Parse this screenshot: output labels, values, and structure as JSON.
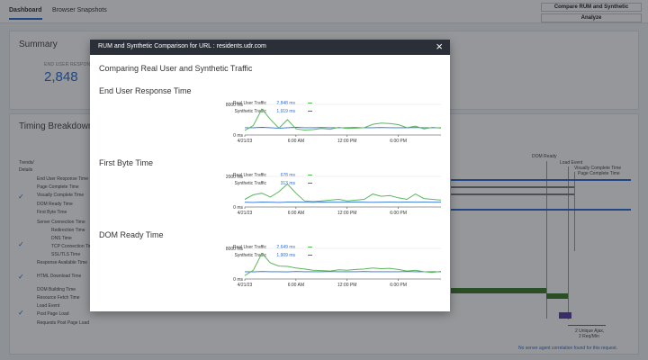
{
  "background": {
    "tabs": [
      {
        "label": "Dashboard",
        "active": true
      },
      {
        "label": "Browser Snapshots",
        "active": false
      }
    ],
    "compare_button": "Compare RUM and Synthetic",
    "analyze_button": "Analyze",
    "summary": {
      "title": "Summary",
      "metric_label": "END USER RESPONSE",
      "metric_value": "2,848"
    },
    "timing": {
      "title": "Timing Breakdown",
      "trends_label": "Trends/",
      "details_label": "Details",
      "rows": [
        "End User Response Time",
        "Page Complete Time",
        "Visually Complete Time",
        "DOM Ready Time",
        "First Byte Time",
        "Server Connection Time",
        "Redirection Time",
        "DNS Time",
        "TCP Connection Time",
        "SSL/TLS Time",
        "Response Available Time",
        "HTML Download Time",
        "DOM Building Time",
        "Resource Fetch Time",
        "Load Event",
        "Post Page Load",
        "Requests Post Page Load"
      ],
      "markers": [
        "DOM Ready",
        "Load Event",
        "Visually Complete Time",
        "Page Complete Time"
      ],
      "ajax_note_1": "2 Unique Ajax,",
      "ajax_note_2": "2 Req/Min",
      "footer_note": "No server agent correlation found for this request."
    }
  },
  "modal": {
    "title": "RUM and Synthetic Comparison for URL : residents.udr.com",
    "close_icon": "close-icon",
    "subtitle": "Comparing Real User and Synthetic Traffic",
    "colors": {
      "real_user": "#5cb85c",
      "synthetic": "#2b6cd6"
    },
    "sections": [
      {
        "title": "End User Response Time",
        "real_user_label": "Real User Traffic",
        "real_user_value": "2,848 ms",
        "synthetic_label": "Synthetic Traffic",
        "synthetic_value": "1,919 ms",
        "y_top": "8000 ms",
        "y_bottom": "0 ms",
        "x_ticks": [
          "4/21/23",
          "6:00 AM",
          "12:00 PM",
          "6:00 PM"
        ]
      },
      {
        "title": "First Byte Time",
        "real_user_label": "Real User Traffic",
        "real_user_value": "678 ms",
        "synthetic_label": "Synthetic Traffic",
        "synthetic_value": "313 ms",
        "y_top": "2000 ms",
        "y_bottom": "0 ms",
        "x_ticks": [
          "4/21/23",
          "6:00 AM",
          "12:00 PM",
          "6:00 PM"
        ]
      },
      {
        "title": "DOM Ready Time",
        "real_user_label": "Real User Traffic",
        "real_user_value": "2,649 ms",
        "synthetic_label": "Synthetic Traffic",
        "synthetic_value": "1,909 ms",
        "y_top": "8000 ms",
        "y_bottom": "0 ms",
        "x_ticks": [
          "4/21/23",
          "6:00 AM",
          "12:00 PM",
          "6:00 PM"
        ]
      }
    ]
  },
  "chart_data": [
    {
      "type": "line",
      "title": "End User Response Time",
      "x": [
        "00:00",
        "01:00",
        "02:00",
        "03:00",
        "04:00",
        "05:00",
        "06:00",
        "07:00",
        "08:00",
        "09:00",
        "10:00",
        "11:00",
        "12:00",
        "13:00",
        "14:00",
        "15:00",
        "16:00",
        "17:00",
        "18:00",
        "19:00",
        "20:00",
        "21:00",
        "22:00",
        "23:00"
      ],
      "ylim": [
        0,
        8000
      ],
      "series": [
        {
          "name": "Real User Traffic",
          "values": [
            1200,
            2500,
            6800,
            4100,
            1800,
            4000,
            1600,
            1300,
            1400,
            1700,
            1500,
            2000,
            1700,
            1800,
            1900,
            2800,
            3100,
            3000,
            2700,
            1900,
            2300,
            1600,
            2000,
            1800
          ]
        },
        {
          "name": "Synthetic Traffic",
          "values": [
            1900,
            1900,
            2000,
            1900,
            1800,
            1900,
            2000,
            1900,
            1900,
            1950,
            1900,
            1900,
            1900,
            1950,
            1900,
            1900,
            1950,
            1900,
            1900,
            1900,
            1950,
            1900,
            1900,
            1900
          ]
        }
      ]
    },
    {
      "type": "line",
      "title": "First Byte Time",
      "x": [
        "00:00",
        "01:00",
        "02:00",
        "03:00",
        "04:00",
        "05:00",
        "06:00",
        "07:00",
        "08:00",
        "09:00",
        "10:00",
        "11:00",
        "12:00",
        "13:00",
        "14:00",
        "15:00",
        "16:00",
        "17:00",
        "18:00",
        "19:00",
        "20:00",
        "21:00",
        "22:00",
        "23:00"
      ],
      "ylim": [
        0,
        2000
      ],
      "series": [
        {
          "name": "Real User Traffic",
          "values": [
            500,
            800,
            900,
            650,
            1000,
            1500,
            900,
            400,
            350,
            400,
            450,
            500,
            400,
            450,
            500,
            850,
            700,
            750,
            600,
            500,
            850,
            550,
            500,
            450
          ]
        },
        {
          "name": "Synthetic Traffic",
          "values": [
            310,
            300,
            320,
            310,
            300,
            315,
            320,
            310,
            305,
            315,
            310,
            310,
            315,
            320,
            310,
            305,
            310,
            315,
            310,
            320,
            310,
            315,
            310,
            313
          ]
        }
      ]
    },
    {
      "type": "line",
      "title": "DOM Ready Time",
      "x": [
        "00:00",
        "01:00",
        "02:00",
        "03:00",
        "04:00",
        "05:00",
        "06:00",
        "07:00",
        "08:00",
        "09:00",
        "10:00",
        "11:00",
        "12:00",
        "13:00",
        "14:00",
        "15:00",
        "16:00",
        "17:00",
        "18:00",
        "19:00",
        "20:00",
        "21:00",
        "22:00",
        "23:00"
      ],
      "ylim": [
        0,
        8000
      ],
      "series": [
        {
          "name": "Real User Traffic",
          "values": [
            900,
            2300,
            6700,
            4200,
            3400,
            3300,
            2900,
            2600,
            2300,
            2200,
            2100,
            2400,
            2300,
            2500,
            2600,
            2900,
            2700,
            2800,
            2500,
            2100,
            2300,
            1900,
            1700,
            2000
          ]
        },
        {
          "name": "Synthetic Traffic",
          "values": [
            1900,
            1850,
            1950,
            1900,
            1900,
            1850,
            1950,
            1900,
            1900,
            1900,
            1950,
            1900,
            1900,
            1900,
            1950,
            1900,
            1900,
            1900,
            1900,
            1950,
            1900,
            1900,
            1900,
            1909
          ]
        }
      ]
    }
  ]
}
